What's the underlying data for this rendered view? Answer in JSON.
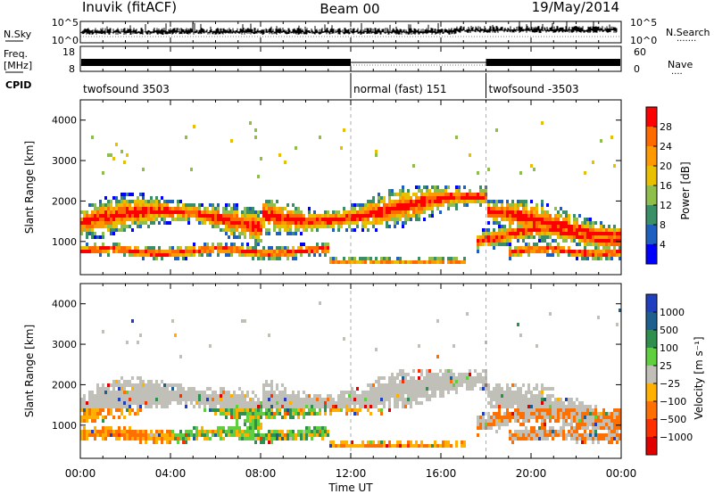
{
  "header": {
    "title": "Inuvik (fitACF)",
    "beam": "Beam 00",
    "date": "19/May/2014"
  },
  "left_labels": {
    "nsky": "N.Sky",
    "freq_line1": "Freq.",
    "freq_line2": "[MHz]",
    "cpid": "CPID"
  },
  "right_labels": {
    "nsearch": "N.Search",
    "nave": "Nave"
  },
  "noise_panel": {
    "left_ticks": [
      "10^5",
      "10^0"
    ],
    "right_ticks": [
      "10^5",
      "10^0"
    ]
  },
  "freq_panel": {
    "left_ticks": [
      "18",
      "8"
    ],
    "right_ticks": [
      "60",
      "0"
    ]
  },
  "cpid_segments": [
    {
      "label": "twofsound 3503",
      "start_hour": 0
    },
    {
      "label": "normal (fast) 151",
      "start_hour": 12
    },
    {
      "label": "twofsound -3503",
      "start_hour": 18
    }
  ],
  "chart_data": [
    {
      "type": "heatmap",
      "quantity": "Power",
      "ylabel": "Slant Range [km]",
      "colorbar_label": "Power [dB]",
      "colorbar_ticks": [
        "28",
        "24",
        "20",
        "16",
        "12",
        "8",
        "4"
      ],
      "colorbar_colors": [
        "#ff0000",
        "#ff6a00",
        "#ff9900",
        "#e8c000",
        "#8fbf4a",
        "#3a8f66",
        "#1f5fbf",
        "#0000ff"
      ],
      "colorbar_range": [
        0,
        32
      ],
      "yticks": [
        "4000",
        "3000",
        "2000",
        "1000"
      ],
      "ytick_values": [
        4000,
        3000,
        2000,
        1000
      ],
      "ylim": [
        180,
        4500
      ],
      "xlim": [
        0,
        24
      ],
      "cpid_boundaries_hours": [
        12,
        18
      ]
    },
    {
      "type": "heatmap",
      "quantity": "Velocity",
      "ylabel": "Slant Range [km]",
      "colorbar_label": "Velocity [m s⁻¹]",
      "colorbar_ticks": [
        "1000",
        "500",
        "100",
        "25",
        "−25",
        "−100",
        "−500",
        "−1000"
      ],
      "colorbar_colors": [
        "#1f3fbf",
        "#1f5f8f",
        "#2f8f4f",
        "#5fcf3f",
        "#c0c0b8",
        "#ffb000",
        "#ff7000",
        "#ff3000",
        "#e00000"
      ],
      "yticks": [
        "4000",
        "3000",
        "2000",
        "1000"
      ],
      "ytick_values": [
        4000,
        3000,
        2000,
        1000
      ],
      "ylim": [
        180,
        4500
      ],
      "xlim": [
        0,
        24
      ],
      "cpid_boundaries_hours": [
        12,
        18
      ]
    }
  ],
  "x_axis": {
    "label": "Time UT",
    "ticks": [
      "00:00",
      "04:00",
      "08:00",
      "12:00",
      "16:00",
      "20:00",
      "00:00"
    ],
    "tick_hours": [
      0,
      4,
      8,
      12,
      16,
      20,
      24
    ]
  }
}
